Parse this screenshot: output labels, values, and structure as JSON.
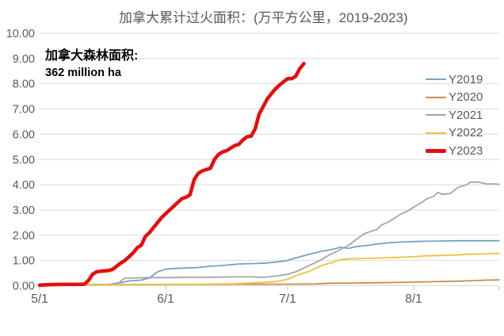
{
  "title": "加拿大累计过火面积：(万平方公里，2019-2023)",
  "annotation": {
    "line1": "加拿大森林面积:",
    "line2": "362 million ha"
  },
  "palette": {
    "grid": "#D9D9D9",
    "tick": "#BFBFBF",
    "axis_text": "#595959",
    "annotation_text": "#000000"
  },
  "chart_data": {
    "type": "line",
    "title": "加拿大累计过火面积：(万平方公里，2019-2023)",
    "xlabel": "",
    "ylabel": "",
    "ylim": [
      0,
      10
    ],
    "y_tick_labels": [
      "0.00",
      "1.00",
      "2.00",
      "3.00",
      "4.00",
      "5.00",
      "6.00",
      "7.00",
      "8.00",
      "9.00",
      "10.00"
    ],
    "x_tick_labels": [
      "5/1",
      "6/1",
      "7/1",
      "8/1"
    ],
    "x_tick_days": [
      0,
      31,
      61,
      92
    ],
    "x_range_days": [
      0,
      113
    ],
    "grid": "horizontal",
    "legend_position": "right",
    "series": [
      {
        "name": "Y2019",
        "color": "#74A2C4",
        "width": 1.8,
        "points": [
          [
            "5/1",
            0.02
          ],
          [
            "5/6",
            0.03
          ],
          [
            "5/12",
            0.04
          ],
          [
            "5/18",
            0.05
          ],
          [
            "5/21",
            0.12
          ],
          [
            "5/23",
            0.19
          ],
          [
            "5/26",
            0.22
          ],
          [
            "5/28",
            0.3
          ],
          [
            "5/30",
            0.55
          ],
          [
            "6/1",
            0.65
          ],
          [
            "6/3",
            0.68
          ],
          [
            "6/6",
            0.7
          ],
          [
            "6/9",
            0.72
          ],
          [
            "6/12",
            0.77
          ],
          [
            "6/15",
            0.8
          ],
          [
            "6/19",
            0.86
          ],
          [
            "6/23",
            0.88
          ],
          [
            "6/26",
            0.9
          ],
          [
            "6/29",
            0.95
          ],
          [
            "7/1",
            1.0
          ],
          [
            "7/3",
            1.1
          ],
          [
            "7/6",
            1.23
          ],
          [
            "7/9",
            1.35
          ],
          [
            "7/12",
            1.44
          ],
          [
            "7/14",
            1.52
          ],
          [
            "7/16",
            1.48
          ],
          [
            "7/18",
            1.55
          ],
          [
            "7/21",
            1.6
          ],
          [
            "7/23",
            1.65
          ],
          [
            "7/26",
            1.7
          ],
          [
            "7/29",
            1.73
          ],
          [
            "8/1",
            1.75
          ],
          [
            "8/4",
            1.76
          ],
          [
            "8/8",
            1.77
          ],
          [
            "8/12",
            1.78
          ],
          [
            "8/16",
            1.78
          ],
          [
            "8/22",
            1.78
          ]
        ]
      },
      {
        "name": "Y2020",
        "color": "#D08A4D",
        "width": 1.8,
        "points": [
          [
            "5/1",
            0.02
          ],
          [
            "5/10",
            0.03
          ],
          [
            "5/20",
            0.04
          ],
          [
            "6/1",
            0.05
          ],
          [
            "6/10",
            0.05
          ],
          [
            "6/20",
            0.06
          ],
          [
            "6/30",
            0.06
          ],
          [
            "7/8",
            0.07
          ],
          [
            "7/12",
            0.1
          ],
          [
            "7/16",
            0.1
          ],
          [
            "7/24",
            0.12
          ],
          [
            "8/1",
            0.14
          ],
          [
            "8/6",
            0.16
          ],
          [
            "8/12",
            0.18
          ],
          [
            "8/16",
            0.2
          ],
          [
            "8/19",
            0.22
          ],
          [
            "8/22",
            0.23
          ]
        ]
      },
      {
        "name": "Y2021",
        "color": "#A5A5A5",
        "width": 1.8,
        "points": [
          [
            "5/1",
            0.02
          ],
          [
            "5/8",
            0.03
          ],
          [
            "5/15",
            0.04
          ],
          [
            "5/20",
            0.05
          ],
          [
            "5/21",
            0.18
          ],
          [
            "5/22",
            0.3
          ],
          [
            "5/25",
            0.31
          ],
          [
            "5/29",
            0.32
          ],
          [
            "6/2",
            0.32
          ],
          [
            "6/6",
            0.33
          ],
          [
            "6/10",
            0.33
          ],
          [
            "6/14",
            0.34
          ],
          [
            "6/18",
            0.35
          ],
          [
            "6/22",
            0.35
          ],
          [
            "6/25",
            0.33
          ],
          [
            "6/28",
            0.38
          ],
          [
            "7/1",
            0.45
          ],
          [
            "7/3",
            0.55
          ],
          [
            "7/5",
            0.7
          ],
          [
            "7/7",
            0.85
          ],
          [
            "7/9",
            1.0
          ],
          [
            "7/11",
            1.2
          ],
          [
            "7/13",
            1.35
          ],
          [
            "7/16",
            1.6
          ],
          [
            "7/18",
            1.85
          ],
          [
            "7/20",
            2.07
          ],
          [
            "7/22",
            2.18
          ],
          [
            "7/23",
            2.23
          ],
          [
            "7/24",
            2.4
          ],
          [
            "7/26",
            2.54
          ],
          [
            "7/28",
            2.75
          ],
          [
            "7/29",
            2.85
          ],
          [
            "7/31",
            3.0
          ],
          [
            "8/1",
            3.11
          ],
          [
            "8/3",
            3.3
          ],
          [
            "8/4",
            3.42
          ],
          [
            "8/6",
            3.55
          ],
          [
            "8/7",
            3.7
          ],
          [
            "8/8",
            3.62
          ],
          [
            "8/10",
            3.65
          ],
          [
            "8/12",
            3.9
          ],
          [
            "8/14",
            4.0
          ],
          [
            "8/15",
            4.1
          ],
          [
            "8/17",
            4.1
          ],
          [
            "8/19",
            4.03
          ],
          [
            "8/21",
            4.03
          ],
          [
            "8/22",
            4.02
          ]
        ]
      },
      {
        "name": "Y2022",
        "color": "#F2C03C",
        "width": 1.8,
        "points": [
          [
            "5/1",
            0.02
          ],
          [
            "5/10",
            0.03
          ],
          [
            "5/20",
            0.04
          ],
          [
            "6/1",
            0.05
          ],
          [
            "6/10",
            0.06
          ],
          [
            "6/18",
            0.08
          ],
          [
            "6/24",
            0.12
          ],
          [
            "6/28",
            0.16
          ],
          [
            "7/1",
            0.25
          ],
          [
            "7/3",
            0.4
          ],
          [
            "7/6",
            0.55
          ],
          [
            "7/9",
            0.77
          ],
          [
            "7/11",
            0.88
          ],
          [
            "7/12",
            0.92
          ],
          [
            "7/14",
            1.03
          ],
          [
            "7/16",
            1.06
          ],
          [
            "7/20",
            1.08
          ],
          [
            "7/24",
            1.1
          ],
          [
            "7/28",
            1.12
          ],
          [
            "8/1",
            1.15
          ],
          [
            "8/4",
            1.18
          ],
          [
            "8/8",
            1.2
          ],
          [
            "8/12",
            1.22
          ],
          [
            "8/15",
            1.25
          ],
          [
            "8/18",
            1.26
          ],
          [
            "8/22",
            1.28
          ]
        ]
      },
      {
        "name": "Y2023",
        "color": "#E50E0E",
        "width": 4.5,
        "points": [
          [
            "5/1",
            0.02
          ],
          [
            "5/3",
            0.04
          ],
          [
            "5/6",
            0.05
          ],
          [
            "5/10",
            0.05
          ],
          [
            "5/12",
            0.06
          ],
          [
            "5/13",
            0.2
          ],
          [
            "5/14",
            0.45
          ],
          [
            "5/15",
            0.55
          ],
          [
            "5/16",
            0.57
          ],
          [
            "5/18",
            0.6
          ],
          [
            "5/19",
            0.65
          ],
          [
            "5/20",
            0.78
          ],
          [
            "5/21",
            0.9
          ],
          [
            "5/22",
            1.0
          ],
          [
            "5/23",
            1.15
          ],
          [
            "5/24",
            1.3
          ],
          [
            "5/25",
            1.5
          ],
          [
            "5/26",
            1.6
          ],
          [
            "5/27",
            1.95
          ],
          [
            "5/28",
            2.1
          ],
          [
            "5/29",
            2.3
          ],
          [
            "5/30",
            2.5
          ],
          [
            "5/31",
            2.7
          ],
          [
            "6/1",
            2.85
          ],
          [
            "6/2",
            3.0
          ],
          [
            "6/3",
            3.15
          ],
          [
            "6/4",
            3.3
          ],
          [
            "6/5",
            3.45
          ],
          [
            "6/6",
            3.5
          ],
          [
            "6/7",
            3.6
          ],
          [
            "6/8",
            4.2
          ],
          [
            "6/9",
            4.45
          ],
          [
            "6/10",
            4.55
          ],
          [
            "6/11",
            4.6
          ],
          [
            "6/12",
            4.65
          ],
          [
            "6/13",
            5.0
          ],
          [
            "6/14",
            5.2
          ],
          [
            "6/15",
            5.3
          ],
          [
            "6/16",
            5.35
          ],
          [
            "6/17",
            5.45
          ],
          [
            "6/18",
            5.55
          ],
          [
            "6/19",
            5.6
          ],
          [
            "6/20",
            5.77
          ],
          [
            "6/21",
            5.9
          ],
          [
            "6/22",
            5.92
          ],
          [
            "6/23",
            6.2
          ],
          [
            "6/24",
            6.8
          ],
          [
            "6/25",
            7.1
          ],
          [
            "6/26",
            7.4
          ],
          [
            "6/27",
            7.6
          ],
          [
            "6/28",
            7.8
          ],
          [
            "6/29",
            7.95
          ],
          [
            "6/30",
            8.08
          ],
          [
            "7/1",
            8.2
          ],
          [
            "7/2",
            8.2
          ],
          [
            "7/3",
            8.3
          ],
          [
            "7/4",
            8.6
          ],
          [
            "7/5",
            8.8
          ]
        ]
      }
    ]
  }
}
